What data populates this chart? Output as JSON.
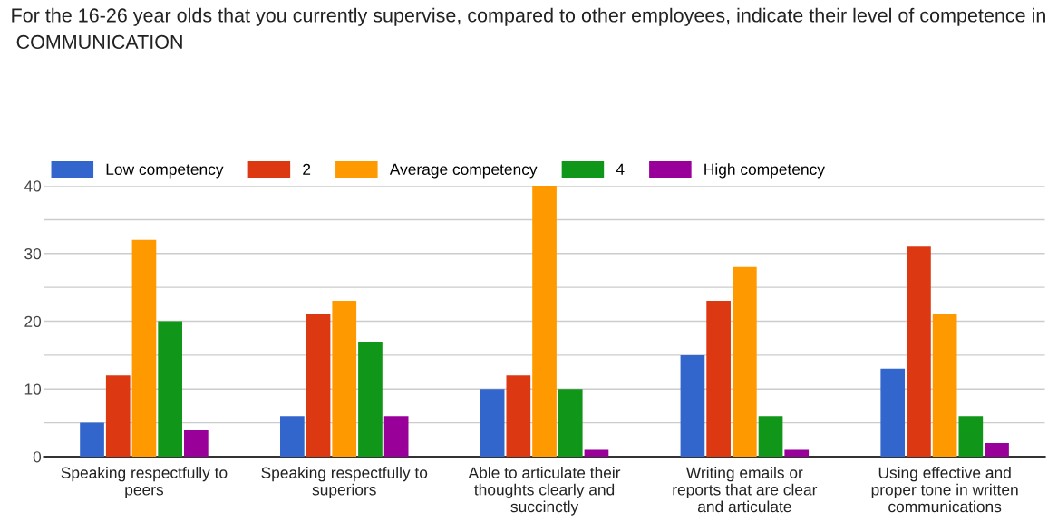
{
  "chart_data": {
    "type": "bar",
    "title": "For the 16-26 year olds that you currently supervise, compared to other employees, indicate their level of competence in  COMMUNICATION",
    "categories": [
      "Speaking respectfully to peers",
      "Speaking respectfully to superiors",
      "Able to articulate their thoughts clearly and succinctly",
      "Writing emails or reports that are clear and articulate",
      "Using effective and proper tone in written communications"
    ],
    "series": [
      {
        "name": "Low competency",
        "color": "#3366cc",
        "values": [
          5,
          6,
          10,
          15,
          13
        ]
      },
      {
        "name": "2",
        "color": "#dc3912",
        "values": [
          12,
          21,
          12,
          23,
          31
        ]
      },
      {
        "name": "Average competency",
        "color": "#ff9900",
        "values": [
          32,
          23,
          40,
          28,
          21
        ]
      },
      {
        "name": "4",
        "color": "#109618",
        "values": [
          20,
          17,
          10,
          6,
          6
        ]
      },
      {
        "name": "High competency",
        "color": "#990099",
        "values": [
          4,
          6,
          1,
          1,
          2
        ]
      }
    ],
    "ylim": [
      0,
      40
    ],
    "yticks": [
      0,
      {
        "value": 5,
        "label": null
      },
      10,
      {
        "value": 15,
        "label": null
      },
      20,
      {
        "value": 25,
        "label": null
      },
      30,
      {
        "value": 35,
        "label": null
      },
      40
    ],
    "grid": "y",
    "legend": "top"
  }
}
